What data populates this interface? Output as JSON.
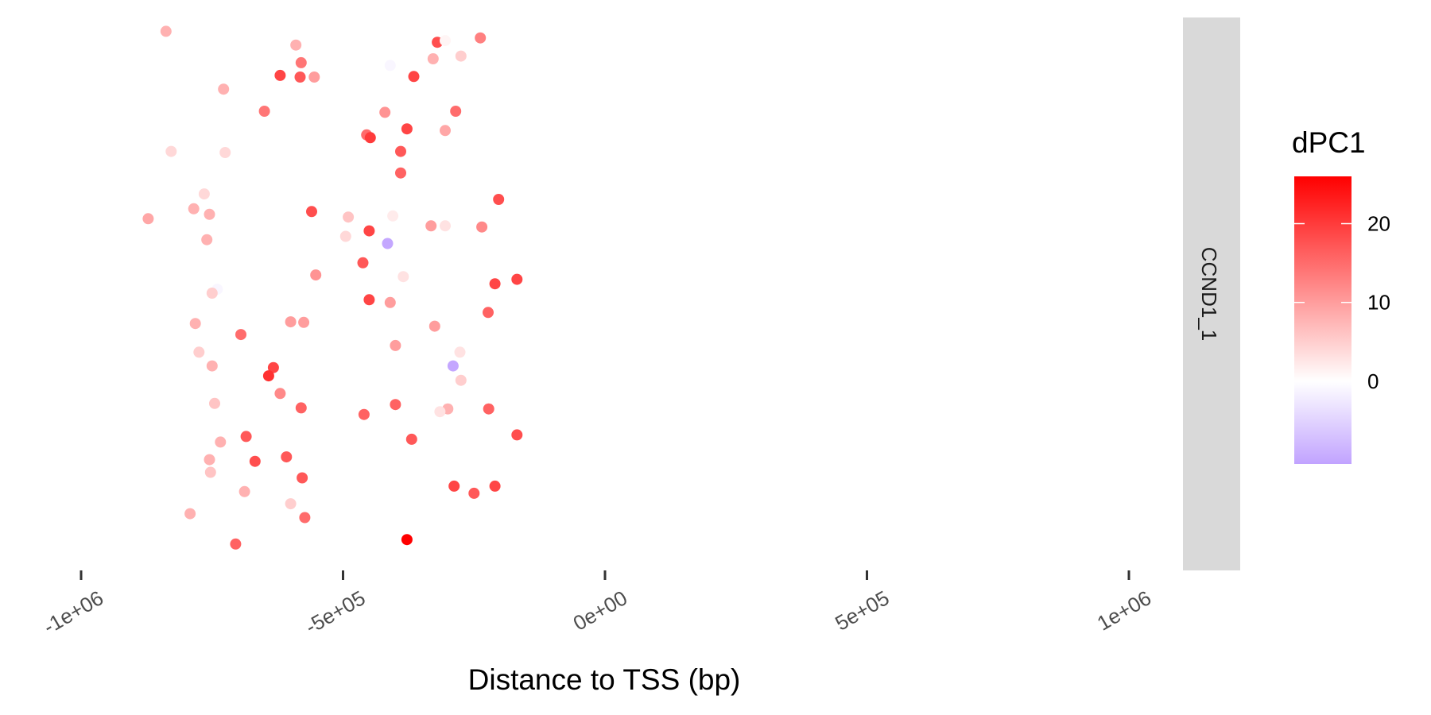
{
  "chart_data": {
    "type": "scatter",
    "title": "",
    "xlabel": "Distance to TSS (bp)",
    "ylabel": "",
    "xlim": [
      -1120000,
      1100000
    ],
    "x_ticks": [
      {
        "value": -1000000,
        "label": "-1e+06"
      },
      {
        "value": -500000,
        "label": "-5e+05"
      },
      {
        "value": 0,
        "label": "0e+00"
      },
      {
        "value": 500000,
        "label": "5e+05"
      },
      {
        "value": 1000000,
        "label": "1e+06"
      }
    ],
    "y_axis_shown": false,
    "grid": false,
    "facet_label": "CCND1_1",
    "legend": {
      "title": "dPC1",
      "position": "right",
      "range": [
        -10.5,
        26
      ],
      "ticks": [
        {
          "value": 0,
          "label": "0"
        },
        {
          "value": 10,
          "label": "10"
        },
        {
          "value": 20,
          "label": "20"
        }
      ],
      "low_color": "#c1a3ff",
      "mid_color": "#ffffff",
      "high_color": "#ff0000"
    },
    "points": [
      {
        "x": -838000,
        "y": 0.975,
        "dpc1": 8
      },
      {
        "x": -590000,
        "y": 0.95,
        "dpc1": 8
      },
      {
        "x": -320000,
        "y": 0.955,
        "dpc1": 18
      },
      {
        "x": -305000,
        "y": 0.958,
        "dpc1": 1
      },
      {
        "x": -238000,
        "y": 0.963,
        "dpc1": 13
      },
      {
        "x": -580000,
        "y": 0.918,
        "dpc1": 14
      },
      {
        "x": -275000,
        "y": 0.93,
        "dpc1": 5
      },
      {
        "x": -328000,
        "y": 0.925,
        "dpc1": 8
      },
      {
        "x": -620000,
        "y": 0.895,
        "dpc1": 19
      },
      {
        "x": -582000,
        "y": 0.892,
        "dpc1": 17
      },
      {
        "x": -555000,
        "y": 0.892,
        "dpc1": 10
      },
      {
        "x": -410000,
        "y": 0.913,
        "dpc1": -1
      },
      {
        "x": -365000,
        "y": 0.893,
        "dpc1": 19
      },
      {
        "x": -728000,
        "y": 0.87,
        "dpc1": 8
      },
      {
        "x": -650000,
        "y": 0.83,
        "dpc1": 14
      },
      {
        "x": -420000,
        "y": 0.828,
        "dpc1": 11
      },
      {
        "x": -285000,
        "y": 0.83,
        "dpc1": 15
      },
      {
        "x": -305000,
        "y": 0.795,
        "dpc1": 9
      },
      {
        "x": -455000,
        "y": 0.787,
        "dpc1": 15
      },
      {
        "x": -448000,
        "y": 0.782,
        "dpc1": 20
      },
      {
        "x": -378000,
        "y": 0.798,
        "dpc1": 19
      },
      {
        "x": -828000,
        "y": 0.757,
        "dpc1": 4
      },
      {
        "x": -725000,
        "y": 0.755,
        "dpc1": 4
      },
      {
        "x": -390000,
        "y": 0.757,
        "dpc1": 17
      },
      {
        "x": -390000,
        "y": 0.718,
        "dpc1": 16
      },
      {
        "x": -765000,
        "y": 0.68,
        "dpc1": 4
      },
      {
        "x": -203000,
        "y": 0.67,
        "dpc1": 18
      },
      {
        "x": -785000,
        "y": 0.653,
        "dpc1": 8
      },
      {
        "x": -755000,
        "y": 0.643,
        "dpc1": 8
      },
      {
        "x": -872000,
        "y": 0.635,
        "dpc1": 9
      },
      {
        "x": -560000,
        "y": 0.648,
        "dpc1": 18
      },
      {
        "x": -490000,
        "y": 0.638,
        "dpc1": 6
      },
      {
        "x": -405000,
        "y": 0.64,
        "dpc1": 2
      },
      {
        "x": -332000,
        "y": 0.622,
        "dpc1": 10
      },
      {
        "x": -305000,
        "y": 0.622,
        "dpc1": 3
      },
      {
        "x": -235000,
        "y": 0.62,
        "dpc1": 12
      },
      {
        "x": -450000,
        "y": 0.613,
        "dpc1": 19
      },
      {
        "x": -760000,
        "y": 0.597,
        "dpc1": 8
      },
      {
        "x": -495000,
        "y": 0.603,
        "dpc1": 4
      },
      {
        "x": -415000,
        "y": 0.59,
        "dpc1": -10
      },
      {
        "x": -462000,
        "y": 0.555,
        "dpc1": 17
      },
      {
        "x": -552000,
        "y": 0.533,
        "dpc1": 11
      },
      {
        "x": -385000,
        "y": 0.53,
        "dpc1": 3
      },
      {
        "x": -168000,
        "y": 0.525,
        "dpc1": 19
      },
      {
        "x": -210000,
        "y": 0.517,
        "dpc1": 19
      },
      {
        "x": -740000,
        "y": 0.507,
        "dpc1": -1
      },
      {
        "x": -750000,
        "y": 0.5,
        "dpc1": 5
      },
      {
        "x": -450000,
        "y": 0.488,
        "dpc1": 19
      },
      {
        "x": -410000,
        "y": 0.483,
        "dpc1": 10
      },
      {
        "x": -223000,
        "y": 0.465,
        "dpc1": 16
      },
      {
        "x": -782000,
        "y": 0.445,
        "dpc1": 8
      },
      {
        "x": -600000,
        "y": 0.448,
        "dpc1": 10
      },
      {
        "x": -575000,
        "y": 0.447,
        "dpc1": 10
      },
      {
        "x": -325000,
        "y": 0.44,
        "dpc1": 10
      },
      {
        "x": -695000,
        "y": 0.425,
        "dpc1": 15
      },
      {
        "x": -400000,
        "y": 0.405,
        "dpc1": 10
      },
      {
        "x": -775000,
        "y": 0.393,
        "dpc1": 5
      },
      {
        "x": -277000,
        "y": 0.393,
        "dpc1": 3
      },
      {
        "x": -750000,
        "y": 0.368,
        "dpc1": 8
      },
      {
        "x": -290000,
        "y": 0.368,
        "dpc1": -10
      },
      {
        "x": -633000,
        "y": 0.365,
        "dpc1": 19
      },
      {
        "x": -642000,
        "y": 0.35,
        "dpc1": 21
      },
      {
        "x": -275000,
        "y": 0.342,
        "dpc1": 5
      },
      {
        "x": -620000,
        "y": 0.318,
        "dpc1": 12
      },
      {
        "x": -745000,
        "y": 0.3,
        "dpc1": 6
      },
      {
        "x": -400000,
        "y": 0.298,
        "dpc1": 16
      },
      {
        "x": -580000,
        "y": 0.292,
        "dpc1": 16
      },
      {
        "x": -300000,
        "y": 0.29,
        "dpc1": 8
      },
      {
        "x": -315000,
        "y": 0.285,
        "dpc1": 3
      },
      {
        "x": -222000,
        "y": 0.29,
        "dpc1": 16
      },
      {
        "x": -460000,
        "y": 0.28,
        "dpc1": 16
      },
      {
        "x": -168000,
        "y": 0.243,
        "dpc1": 18
      },
      {
        "x": -685000,
        "y": 0.24,
        "dpc1": 17
      },
      {
        "x": -734000,
        "y": 0.23,
        "dpc1": 8
      },
      {
        "x": -369000,
        "y": 0.235,
        "dpc1": 17
      },
      {
        "x": -608000,
        "y": 0.203,
        "dpc1": 17
      },
      {
        "x": -755000,
        "y": 0.198,
        "dpc1": 8
      },
      {
        "x": -668000,
        "y": 0.195,
        "dpc1": 18
      },
      {
        "x": -753000,
        "y": 0.175,
        "dpc1": 6
      },
      {
        "x": -578000,
        "y": 0.165,
        "dpc1": 17
      },
      {
        "x": -288000,
        "y": 0.15,
        "dpc1": 19
      },
      {
        "x": -210000,
        "y": 0.15,
        "dpc1": 19
      },
      {
        "x": -250000,
        "y": 0.137,
        "dpc1": 17
      },
      {
        "x": -688000,
        "y": 0.14,
        "dpc1": 8
      },
      {
        "x": -600000,
        "y": 0.118,
        "dpc1": 5
      },
      {
        "x": -792000,
        "y": 0.1,
        "dpc1": 8
      },
      {
        "x": -573000,
        "y": 0.093,
        "dpc1": 15
      },
      {
        "x": -378000,
        "y": 0.053,
        "dpc1": 26
      },
      {
        "x": -705000,
        "y": 0.045,
        "dpc1": 16
      }
    ]
  }
}
